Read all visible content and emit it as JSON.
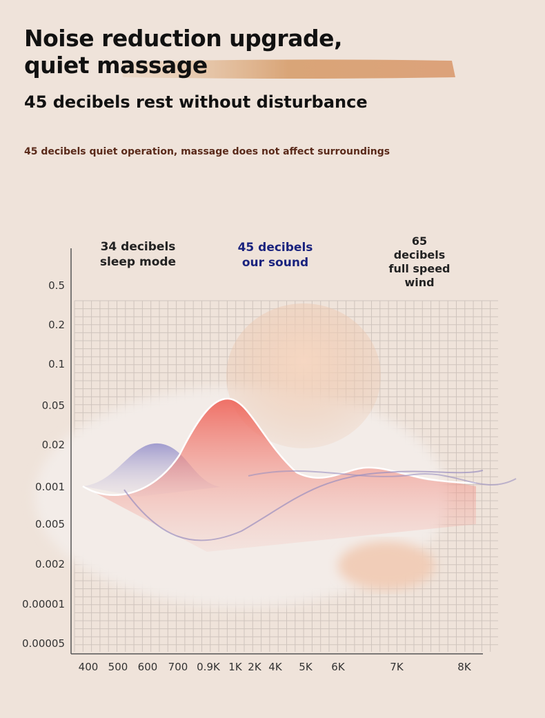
{
  "header": {
    "title": "Noise reduction upgrade, quiet massage",
    "subtitle": "45 decibels rest without disturbance",
    "description": "45 decibels quiet operation, massage does not affect surroundings"
  },
  "chart": {
    "annotations": [
      {
        "text": "34 decibels sleep mode"
      },
      {
        "text": "45 decibels our sound"
      },
      {
        "text": "65 decibels full speed wind"
      }
    ],
    "y_labels": [
      "0.5",
      "0.2",
      "0.1",
      "0.05",
      "0.02",
      "0.001",
      "0.005",
      "0.002",
      "0.00001",
      "0.00005"
    ],
    "x_labels": [
      "400",
      "500",
      "600",
      "700",
      "0.9K",
      "1K",
      "2K",
      "4K",
      "5K",
      "6K",
      "7K",
      "8K"
    ]
  }
}
